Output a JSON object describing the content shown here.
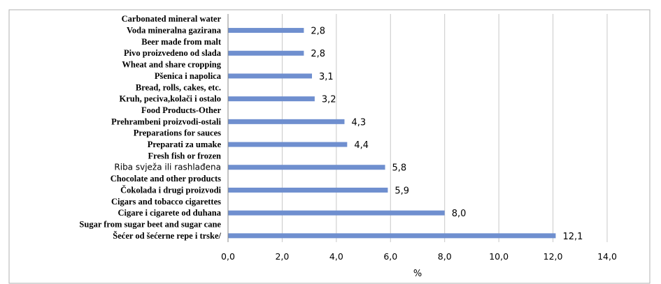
{
  "chart_data": {
    "type": "bar",
    "orientation": "horizontal",
    "xlabel": "%",
    "ylabel": "",
    "xlim": [
      0,
      14
    ],
    "x_ticks": [
      "0,0",
      "2,0",
      "4,0",
      "6,0",
      "8,0",
      "10,0",
      "12,0",
      "14,0"
    ],
    "grid": "vertical",
    "bar_color": "#6f8fcf",
    "categories": [
      {
        "labels": [
          "Carbonated mineral water",
          "Voda mineralna gazirana"
        ],
        "value": 2.8,
        "value_label": "2,8"
      },
      {
        "labels": [
          "Beer made from malt",
          "Pivo proizvedeno od slada"
        ],
        "value": 2.8,
        "value_label": "2,8"
      },
      {
        "labels": [
          "Wheat and share cropping",
          "Pšenica i napolica"
        ],
        "value": 3.1,
        "value_label": "3,1"
      },
      {
        "labels": [
          "Bread, rolls, cakes, etc.",
          "Kruh, peciva,kolači i ostalo"
        ],
        "value": 3.2,
        "value_label": "3,2"
      },
      {
        "labels": [
          "Food Products-Other",
          "Prehrambeni proizvodi-ostali"
        ],
        "value": 4.3,
        "value_label": "4,3"
      },
      {
        "labels": [
          "Preparations for sauces",
          "Preparati za umake"
        ],
        "value": 4.4,
        "value_label": "4,4"
      },
      {
        "labels": [
          "Fresh fish or frozen",
          "Riba svježa ili rashlađena"
        ],
        "value": 5.8,
        "value_label": "5,8"
      },
      {
        "labels": [
          "Chocolate and other products",
          "Čokolada i drugi proizvodi"
        ],
        "value": 5.9,
        "value_label": "5,9"
      },
      {
        "labels": [
          "Cigars and tobacco cigarettes",
          "Cigare i cigarete od duhana"
        ],
        "value": 8.0,
        "value_label": "8,0"
      },
      {
        "labels": [
          "Sugar from sugar beet and sugar cane",
          "Šećer od šećerne repe i trske/"
        ],
        "value": 12.1,
        "value_label": "12,1"
      }
    ]
  }
}
